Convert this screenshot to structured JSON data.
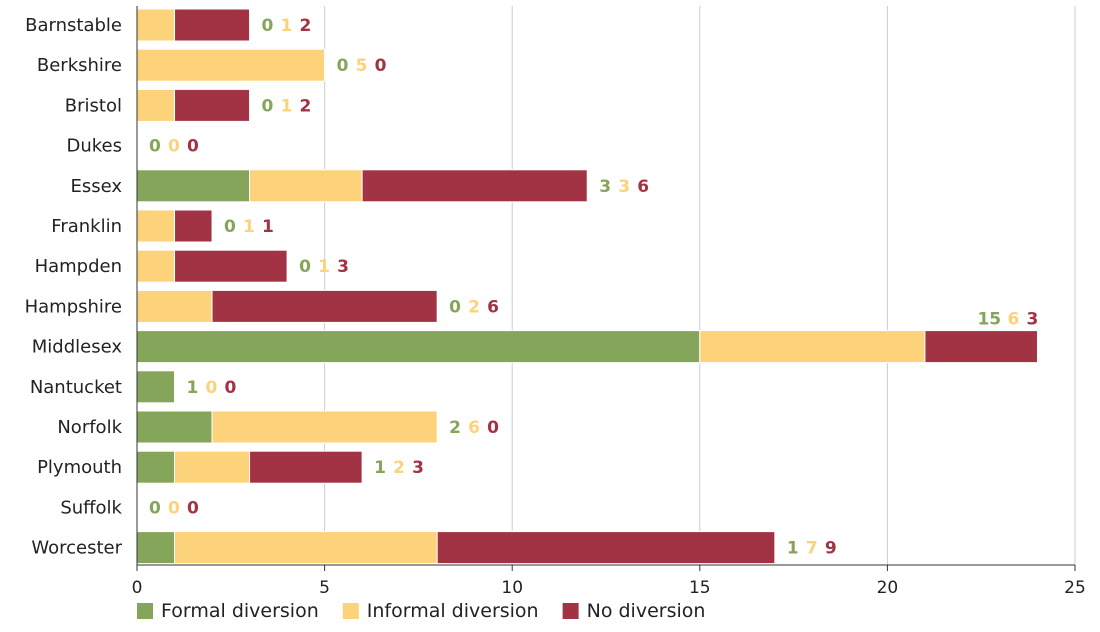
{
  "chart_data": {
    "type": "bar",
    "orientation": "horizontal",
    "stacked": true,
    "categories": [
      "Barnstable",
      "Berkshire",
      "Bristol",
      "Dukes",
      "Essex",
      "Franklin",
      "Hampden",
      "Hampshire",
      "Middlesex",
      "Nantucket",
      "Norfolk",
      "Plymouth",
      "Suffolk",
      "Worcester"
    ],
    "series": [
      {
        "name": "Formal diversion",
        "color": "#85a65a",
        "values": [
          0,
          0,
          0,
          0,
          3,
          0,
          0,
          0,
          15,
          1,
          2,
          1,
          0,
          1
        ]
      },
      {
        "name": "Informal diversion",
        "color": "#fcd27b",
        "values": [
          1,
          5,
          1,
          0,
          3,
          1,
          1,
          2,
          6,
          0,
          6,
          2,
          0,
          7
        ]
      },
      {
        "name": "No diversion",
        "color": "#a23344",
        "values": [
          2,
          0,
          2,
          0,
          6,
          1,
          3,
          6,
          3,
          0,
          0,
          3,
          0,
          9
        ]
      }
    ],
    "xlim": [
      0,
      25
    ],
    "xticks": [
      0,
      5,
      10,
      15,
      20,
      25
    ],
    "grid": "vertical",
    "legend": "bottom",
    "title": "",
    "xlabel": "",
    "ylabel": ""
  }
}
